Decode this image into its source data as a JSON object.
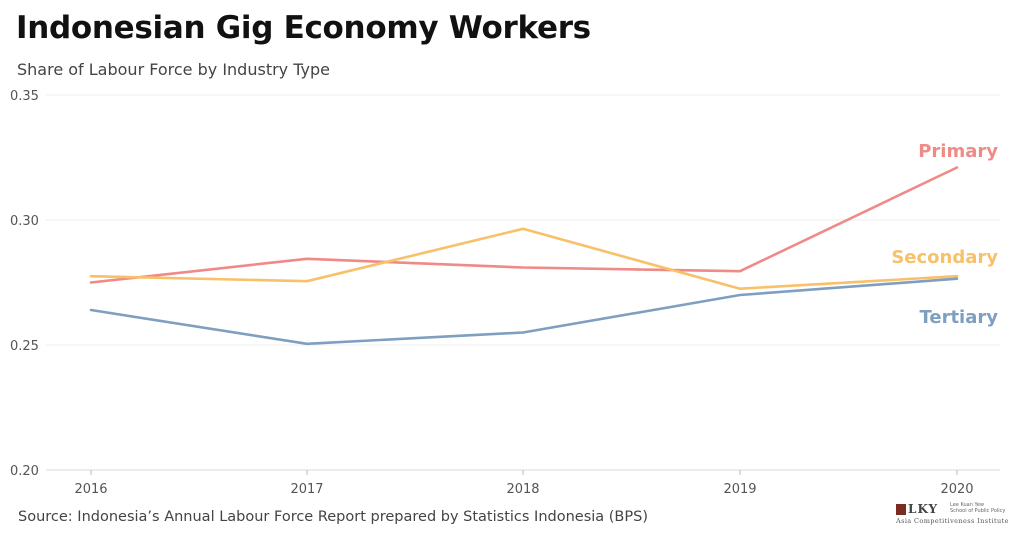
{
  "title": "Indonesian Gig Economy Workers",
  "subtitle": "Share of Labour Force by Industry Type",
  "source": "Source: Indonesia’s Annual Labour Force Report prepared by Statistics Indonesia (BPS)",
  "logo": {
    "letters": "LKY",
    "school_line1": "Lee Kuan Yew",
    "school_line2": "School of Public Policy",
    "institute": "Asia Competitiveness Institute"
  },
  "chart_data": {
    "type": "line",
    "title": "Indonesian Gig Economy Workers",
    "subtitle": "Share of Labour Force by Industry Type",
    "xlabel": "",
    "ylabel": "",
    "x": [
      "2016",
      "2017",
      "2018",
      "2019",
      "2020"
    ],
    "ylim": [
      0.2,
      0.35
    ],
    "yticks": [
      0.2,
      0.25,
      0.3,
      0.35
    ],
    "ytick_labels": [
      "0.20",
      "0.25",
      "0.30",
      "0.35"
    ],
    "grid": true,
    "legend": "direct labels at right end of lines",
    "series": [
      {
        "name": "Primary",
        "color": "#ef8a87",
        "values": [
          0.275,
          0.2845,
          0.281,
          0.2795,
          0.321
        ]
      },
      {
        "name": "Secondary",
        "color": "#f9c06a",
        "values": [
          0.2775,
          0.2755,
          0.2965,
          0.2725,
          0.2775
        ]
      },
      {
        "name": "Tertiary",
        "color": "#7f9fc0",
        "values": [
          0.264,
          0.2505,
          0.255,
          0.27,
          0.2765
        ]
      }
    ]
  }
}
